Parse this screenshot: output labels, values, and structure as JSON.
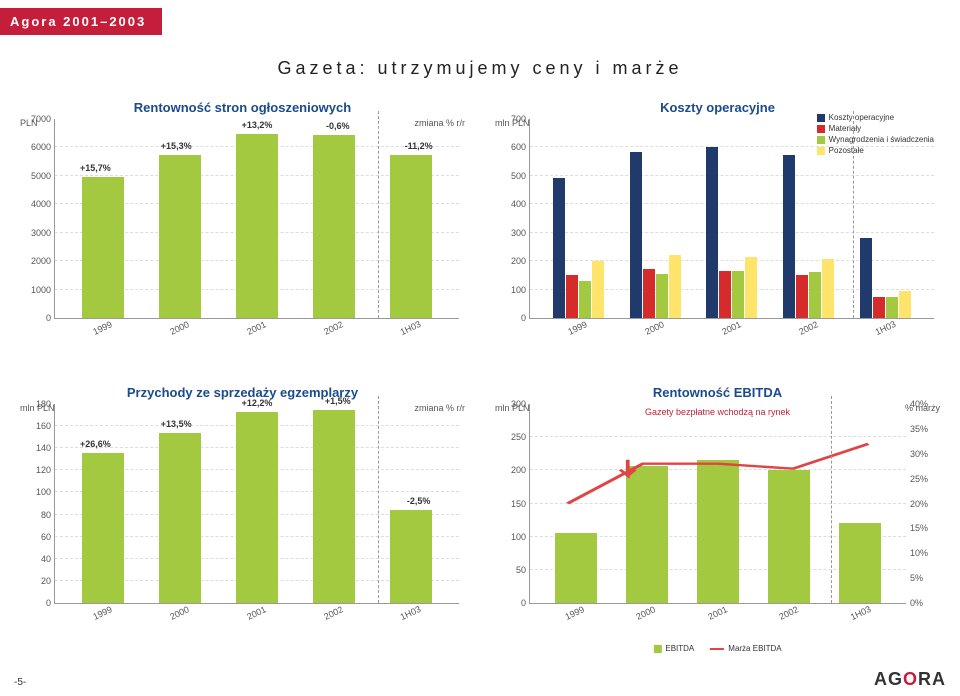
{
  "header": {
    "tag": "Agora 2001–2003",
    "subtitle": "Gazeta: utrzymujemy ceny i marże"
  },
  "colors": {
    "green": "#a3c940",
    "navy": "#1f3a6b",
    "red": "#d62b2b",
    "yellow": "#ffe46b",
    "lightgreen": "#c0da73",
    "line_red": "#e04545",
    "grid": "#e0e0e0",
    "axis": "#999999",
    "title": "#1a4b8c"
  },
  "chart1": {
    "title": "Rentowność stron ogłoszeniowych",
    "unit_left": "PLN",
    "unit_right": "zmiana % r/r",
    "ymax": 7000,
    "ystep": 1000,
    "bar_color": "#a3c940",
    "categories": [
      "1999",
      "2000",
      "2001",
      "2002",
      "1H03"
    ],
    "values": [
      4950,
      5700,
      6450,
      6410,
      5690
    ],
    "annotations": [
      "+15,7%",
      "+15,3%",
      "+13,2%",
      "-0,6%",
      "-11,2%"
    ],
    "dash_after": 3
  },
  "chart2": {
    "title": "Koszty operacyjne",
    "unit_left": "mln PLN",
    "ymax": 700,
    "ystep": 100,
    "categories": [
      "1999",
      "2000",
      "2001",
      "2002",
      "1H03"
    ],
    "legend": [
      {
        "label": "Koszty operacyjne",
        "color": "#1f3a6b"
      },
      {
        "label": "Materiały",
        "color": "#d62b2b"
      },
      {
        "label": "Wynagrodzenia i świadczenia",
        "color": "#a3c940"
      },
      {
        "label": "Pozostałe",
        "color": "#ffe46b"
      }
    ],
    "series": [
      {
        "color": "#1f3a6b",
        "values": [
          490,
          580,
          600,
          570,
          280
        ]
      },
      {
        "color": "#d62b2b",
        "values": [
          150,
          170,
          165,
          150,
          75
        ]
      },
      {
        "color": "#a3c940",
        "values": [
          130,
          155,
          165,
          160,
          75
        ]
      },
      {
        "color": "#ffe46b",
        "values": [
          200,
          220,
          215,
          205,
          95
        ]
      }
    ],
    "dash_after": 3
  },
  "chart3": {
    "title": "Przychody ze sprzedaży egzemplarzy",
    "unit_left": "mln PLN",
    "unit_right": "zmiana % r/r",
    "ymax": 180,
    "ystep": 20,
    "bar_color": "#a3c940",
    "categories": [
      "1999",
      "2000",
      "2001",
      "2002",
      "1H03"
    ],
    "values": [
      135,
      153,
      172,
      174,
      84
    ],
    "annotations": [
      "+26,6%",
      "+13,5%",
      "+12,2%",
      "+1,5%",
      "-2,5%"
    ],
    "dash_after": 3
  },
  "chart4": {
    "title": "Rentowność EBITDA",
    "unit_left": "mln PLN",
    "unit_right": "% marży",
    "ymax": 300,
    "ystep": 50,
    "y2max": 40,
    "y2step": 5,
    "categories": [
      "1999",
      "2000",
      "2001",
      "2002",
      "1H03"
    ],
    "bars": {
      "color": "#a3c940",
      "values": [
        105,
        205,
        215,
        200,
        120
      ]
    },
    "line": {
      "color": "#e04545",
      "values": [
        20,
        28,
        28,
        27,
        32
      ]
    },
    "note": "Gazety bezpłatne wchodzą na rynek",
    "legend": [
      {
        "label": "EBITDA",
        "color": "#a3c940",
        "type": "box"
      },
      {
        "label": "Marża EBITDA",
        "color": "#e04545",
        "type": "line"
      }
    ],
    "dash_after": 3
  },
  "footer": {
    "page": "-5-",
    "logo": "AGORA"
  }
}
